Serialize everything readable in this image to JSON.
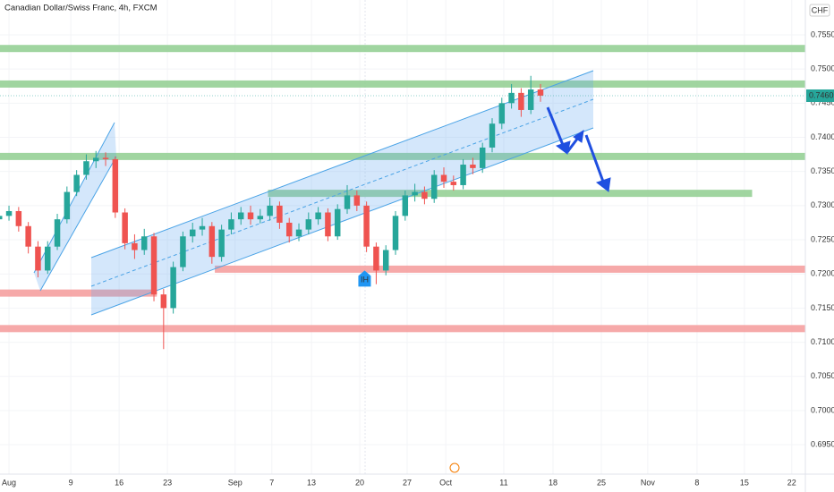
{
  "chart_data": {
    "type": "candlestick",
    "title": "Canadian Dollar/Swiss Franc, 4h, FXCM",
    "currency": "CHF",
    "last_price": 0.74609,
    "xlim": [
      -0.93,
      82.41
    ],
    "ylim": [
      0.6907,
      0.7601
    ],
    "xticks": [
      {
        "value": 0,
        "label": "Aug"
      },
      {
        "value": 6.4,
        "label": "9"
      },
      {
        "value": 11.4,
        "label": "16"
      },
      {
        "value": 16.4,
        "label": "23"
      },
      {
        "value": 23.4,
        "label": "Sep"
      },
      {
        "value": 27.2,
        "label": "7"
      },
      {
        "value": 31.3,
        "label": "13"
      },
      {
        "value": 36.3,
        "label": "20"
      },
      {
        "value": 41.2,
        "label": "27"
      },
      {
        "value": 45.2,
        "label": "Oct"
      },
      {
        "value": 51.2,
        "label": "11"
      },
      {
        "value": 56.3,
        "label": "18"
      },
      {
        "value": 61.3,
        "label": "25"
      },
      {
        "value": 66.1,
        "label": "Nov"
      },
      {
        "value": 71.2,
        "label": "8"
      },
      {
        "value": 76.1,
        "label": "15"
      },
      {
        "value": 81.0,
        "label": "22"
      }
    ],
    "yticks": [
      {
        "value": 0.755,
        "label": "0.75500"
      },
      {
        "value": 0.75,
        "label": "0.75000"
      },
      {
        "value": 0.745,
        "label": "0.74500"
      },
      {
        "value": 0.74,
        "label": "0.74000"
      },
      {
        "value": 0.735,
        "label": "0.73500"
      },
      {
        "value": 0.73,
        "label": "0.73000"
      },
      {
        "value": 0.725,
        "label": "0.72500"
      },
      {
        "value": 0.72,
        "label": "0.72000"
      },
      {
        "value": 0.715,
        "label": "0.71500"
      },
      {
        "value": 0.71,
        "label": "0.71000"
      },
      {
        "value": 0.705,
        "label": "0.70500"
      },
      {
        "value": 0.7,
        "label": "0.70000"
      },
      {
        "value": 0.695,
        "label": "0.69500"
      }
    ],
    "up_color": "#26a69a",
    "down_color": "#ef5350",
    "x": [
      -1,
      0,
      1,
      2,
      3,
      4,
      5,
      6,
      7,
      8,
      9,
      10,
      11,
      12,
      13,
      14,
      15,
      16,
      17,
      18,
      19,
      20,
      21,
      22,
      23,
      24,
      25,
      26,
      27,
      28,
      29,
      30,
      31,
      32,
      33,
      34,
      35,
      36,
      37,
      38,
      39,
      40,
      41,
      42,
      43,
      44,
      45,
      46,
      47,
      48,
      49,
      50,
      51,
      52,
      53,
      54,
      55
    ],
    "open": [
      0.728,
      0.7285,
      0.7292,
      0.727,
      0.724,
      0.7205,
      0.724,
      0.728,
      0.732,
      0.7345,
      0.7365,
      0.737,
      0.7368,
      0.729,
      0.7245,
      0.7235,
      0.7255,
      0.717,
      0.715,
      0.721,
      0.7255,
      0.7265,
      0.727,
      0.7225,
      0.7265,
      0.728,
      0.729,
      0.728,
      0.7285,
      0.73,
      0.7275,
      0.7255,
      0.7265,
      0.728,
      0.729,
      0.7255,
      0.7295,
      0.7315,
      0.73,
      0.724,
      0.7205,
      0.7235,
      0.7285,
      0.7315,
      0.732,
      0.731,
      0.7345,
      0.7335,
      0.733,
      0.736,
      0.7355,
      0.7385,
      0.742,
      0.745,
      0.7465,
      0.744,
      0.747
    ],
    "high": [
      0.7295,
      0.73,
      0.7298,
      0.7276,
      0.7248,
      0.7248,
      0.7288,
      0.7328,
      0.7352,
      0.7375,
      0.738,
      0.7378,
      0.7372,
      0.7296,
      0.7258,
      0.7266,
      0.726,
      0.7178,
      0.7218,
      0.7262,
      0.7275,
      0.7282,
      0.7276,
      0.7272,
      0.729,
      0.7298,
      0.73,
      0.7295,
      0.7312,
      0.7306,
      0.7282,
      0.7274,
      0.729,
      0.7298,
      0.7296,
      0.7302,
      0.733,
      0.7322,
      0.7306,
      0.7246,
      0.7242,
      0.7292,
      0.7322,
      0.7332,
      0.7328,
      0.7352,
      0.7356,
      0.7344,
      0.7368,
      0.737,
      0.7392,
      0.7428,
      0.7458,
      0.7478,
      0.7472,
      0.749,
      0.7478
    ],
    "low": [
      0.7272,
      0.7278,
      0.7262,
      0.723,
      0.7195,
      0.72,
      0.7235,
      0.7274,
      0.7314,
      0.7338,
      0.7355,
      0.7358,
      0.7282,
      0.7236,
      0.7222,
      0.7228,
      0.716,
      0.709,
      0.7142,
      0.7204,
      0.7246,
      0.7256,
      0.7215,
      0.7218,
      0.7258,
      0.7272,
      0.7272,
      0.7274,
      0.7278,
      0.7266,
      0.7246,
      0.7248,
      0.7258,
      0.7272,
      0.7248,
      0.725,
      0.7288,
      0.7292,
      0.7232,
      0.7185,
      0.7198,
      0.7228,
      0.7278,
      0.7306,
      0.7302,
      0.7304,
      0.7326,
      0.7322,
      0.7324,
      0.7346,
      0.7348,
      0.7378,
      0.7412,
      0.7442,
      0.743,
      0.7434,
      0.7452
    ],
    "close": [
      0.7285,
      0.7292,
      0.727,
      0.724,
      0.7205,
      0.724,
      0.728,
      0.732,
      0.7345,
      0.7365,
      0.737,
      0.7368,
      0.729,
      0.7245,
      0.7235,
      0.7255,
      0.717,
      0.715,
      0.721,
      0.7255,
      0.7265,
      0.727,
      0.7225,
      0.7265,
      0.728,
      0.729,
      0.728,
      0.7285,
      0.73,
      0.7275,
      0.7255,
      0.7265,
      0.728,
      0.729,
      0.7255,
      0.7295,
      0.7315,
      0.73,
      0.724,
      0.7205,
      0.7235,
      0.7285,
      0.7315,
      0.732,
      0.731,
      0.7345,
      0.7335,
      0.733,
      0.736,
      0.7355,
      0.7385,
      0.742,
      0.745,
      0.7465,
      0.744,
      0.747,
      0.7461
    ],
    "levels": [
      {
        "value": 0.753,
        "color": "#8fce8f",
        "from": -0.93,
        "to": 82.41
      },
      {
        "value": 0.7478,
        "color": "#8fce8f",
        "from": -0.93,
        "to": 82.41
      },
      {
        "value": 0.7372,
        "color": "#8fce8f",
        "from": -0.93,
        "to": 82.41
      },
      {
        "value": 0.7318,
        "color": "#8fce8f",
        "from": 26.8,
        "to": 76.9
      },
      {
        "value": 0.7207,
        "color": "#f59a9a",
        "from": 21.3,
        "to": 82.41
      },
      {
        "value": 0.7172,
        "color": "#f59a9a",
        "from": -0.93,
        "to": 15.3
      },
      {
        "value": 0.712,
        "color": "#f59a9a",
        "from": -0.93,
        "to": 82.41
      }
    ],
    "annotation": {
      "text": "IH",
      "x": 36.8,
      "y": 0.7192
    }
  }
}
